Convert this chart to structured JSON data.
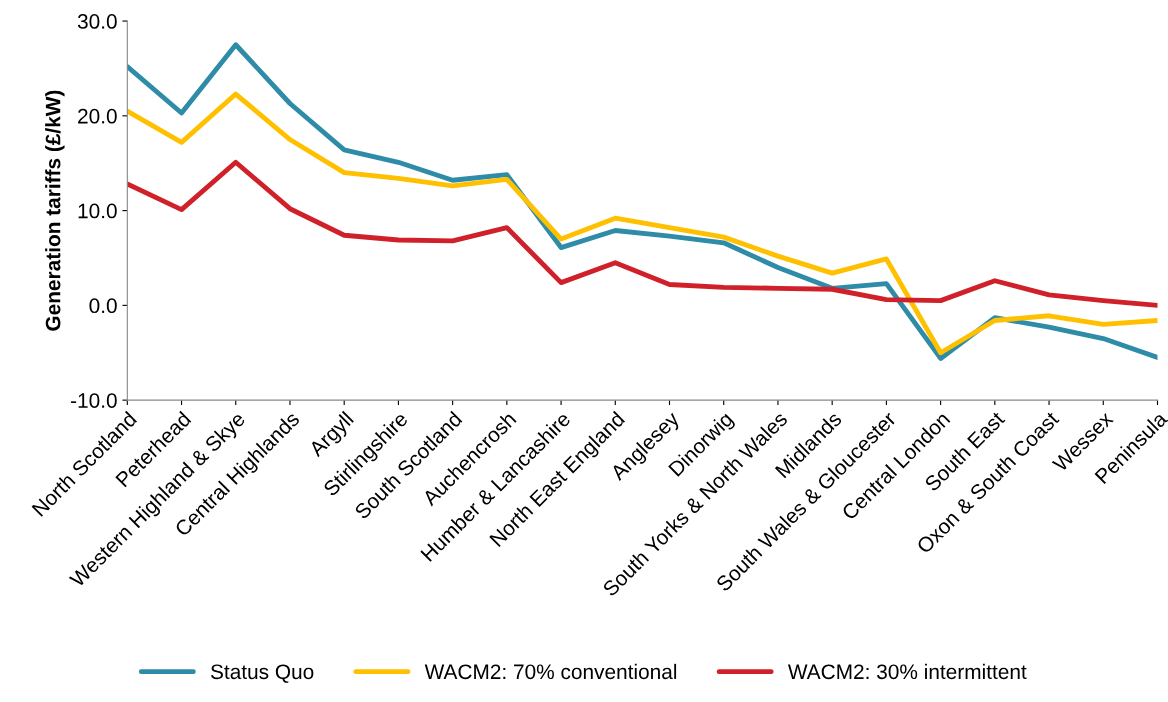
{
  "chart_data": {
    "type": "line",
    "ylabel": "Generation tariffs (£/kW)",
    "categories": [
      "North Scotland",
      "Peterhead",
      "Western Highland & Skye",
      "Central Highlands",
      "Argyll",
      "Stirlingshire",
      "South Scotland",
      "Auchencrosh",
      "Humber & Lancashire",
      "North East England",
      "Anglesey",
      "Dinorwig",
      "South Yorks & North Wales",
      "Midlands",
      "South Wales & Gloucester",
      "Central London",
      "South East",
      "Oxon & South Coast",
      "Wessex",
      "Peninsula"
    ],
    "series": [
      {
        "name": "Status Quo",
        "color": "#2e8ca8",
        "values": [
          25.2,
          20.3,
          27.5,
          21.3,
          16.4,
          15.1,
          13.2,
          13.8,
          6.1,
          7.9,
          7.3,
          6.6,
          4.0,
          1.8,
          2.3,
          -5.6,
          -1.3,
          -2.3,
          -3.5,
          -5.5
        ]
      },
      {
        "name": "WACM2: 70% conventional",
        "color": "#ffc000",
        "values": [
          20.5,
          17.2,
          22.3,
          17.5,
          14.0,
          13.4,
          12.6,
          13.3,
          7.0,
          9.2,
          8.2,
          7.2,
          5.2,
          3.4,
          4.9,
          -5.0,
          -1.6,
          -1.1,
          -2.0,
          -1.6
        ]
      },
      {
        "name": "WACM2: 30% intermittent",
        "color": "#d0202a",
        "values": [
          12.8,
          10.1,
          15.1,
          10.2,
          7.4,
          6.9,
          6.8,
          8.2,
          2.4,
          4.5,
          2.2,
          1.9,
          1.8,
          1.7,
          0.6,
          0.5,
          2.6,
          1.1,
          0.5,
          0.0
        ]
      }
    ],
    "ylim": [
      -10,
      30
    ],
    "yticks": [
      {
        "value": -10,
        "label": "-10.0"
      },
      {
        "value": 0,
        "label": "0.0"
      },
      {
        "value": 10,
        "label": "10.0"
      },
      {
        "value": 20,
        "label": "20.0"
      },
      {
        "value": 30,
        "label": "30.0"
      }
    ],
    "grid": false,
    "legend": "bottom",
    "marker": "none",
    "line_style": "solid"
  }
}
